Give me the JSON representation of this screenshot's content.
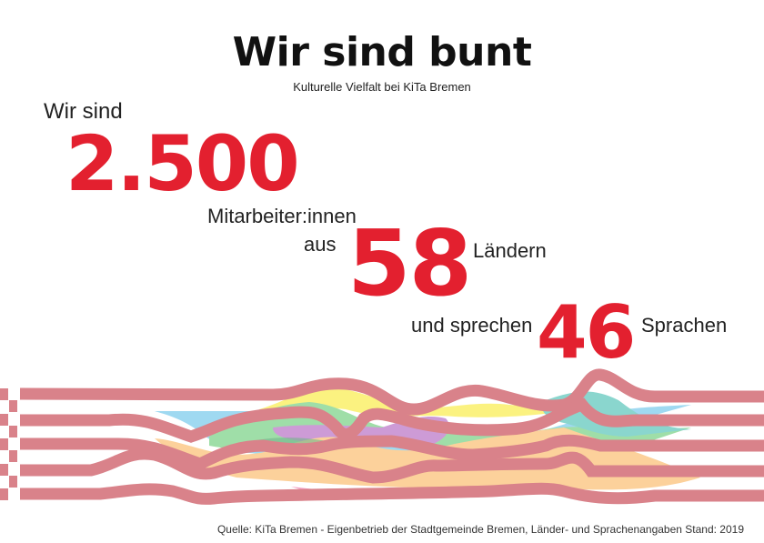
{
  "header": {
    "title": "Wir sind bunt",
    "subtitle": "Kulturelle Vielfalt bei KiTa Bremen"
  },
  "stats": {
    "intro": "Wir sind",
    "staff_count": "2.500",
    "staff_label": "Mitarbeiter:innen",
    "countries_prefix": "aus",
    "countries_count": "58",
    "countries_label": "Ländern",
    "languages_prefix": "und sprechen",
    "languages_count": "46",
    "languages_label": "Sprachen"
  },
  "colors": {
    "accent": "#e3202f",
    "stripe": "#d9828a",
    "ribbons": [
      "#fbf06a",
      "#8fd3ef",
      "#8fd99a",
      "#c58ad0",
      "#fcc98a",
      "#76cfc6",
      "#f38fb8"
    ]
  },
  "source": "Quelle: KiTa Bremen - Eigenbetrieb der Stadtgemeinde Bremen, Länder- und Sprachenangaben Stand: 2019"
}
